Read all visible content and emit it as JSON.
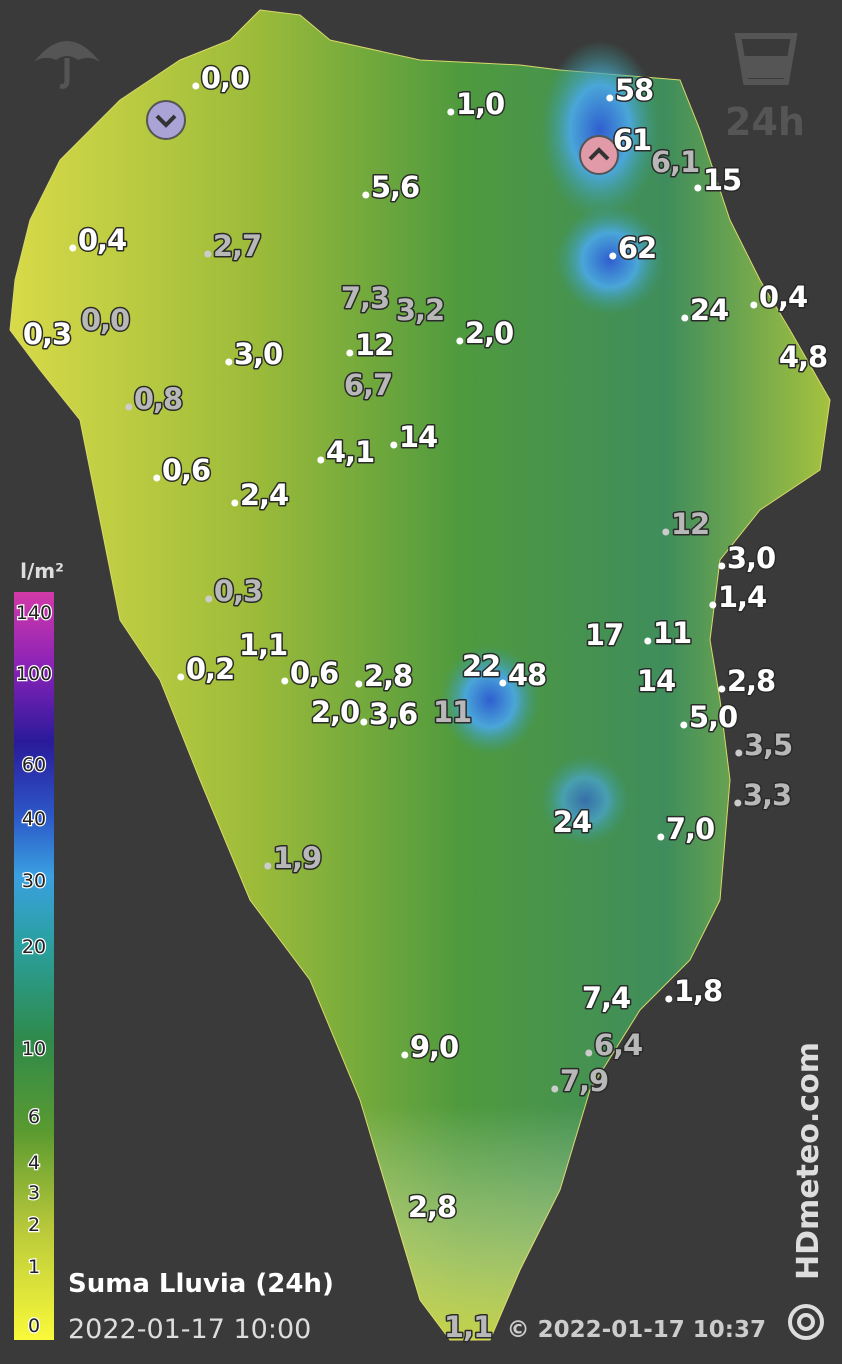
{
  "header": {
    "period": "24h"
  },
  "legend": {
    "unit": "l/m²",
    "ticks": [
      140,
      100,
      60,
      40,
      30,
      20,
      10,
      6,
      4,
      3,
      2,
      1,
      0
    ]
  },
  "stations": [
    "0,0",
    "1,0",
    "58",
    "61",
    "6,1",
    "15",
    "5,6",
    "0,4",
    "2,7",
    "62",
    "24",
    "0,4",
    "0,3",
    "0,0",
    "7,3",
    "3,2",
    "2,0",
    "12",
    "3,0",
    "4,8",
    "6,7",
    "0,8",
    "14",
    "4,1",
    "0,6",
    "2,4",
    "12",
    "3,0",
    "1,4",
    "0,3",
    "17",
    "11",
    "1,1",
    "0,2",
    "0,6",
    "2,8",
    "22",
    "48",
    "14",
    "2,8",
    "2,0",
    "3,6",
    "11",
    "5,0",
    "3,5",
    "3,3",
    "24",
    "7,0",
    "1,9",
    "1,8",
    "7,4",
    "6,4",
    "9,0",
    "7,9",
    "2,8",
    "1,1"
  ],
  "footer": {
    "title": "Suma Lluvia (24h)",
    "valid_time": "2022-01-17 10:00",
    "copyright": "© 2022-01-17 10:37",
    "brand": "HDmeteo.com"
  }
}
